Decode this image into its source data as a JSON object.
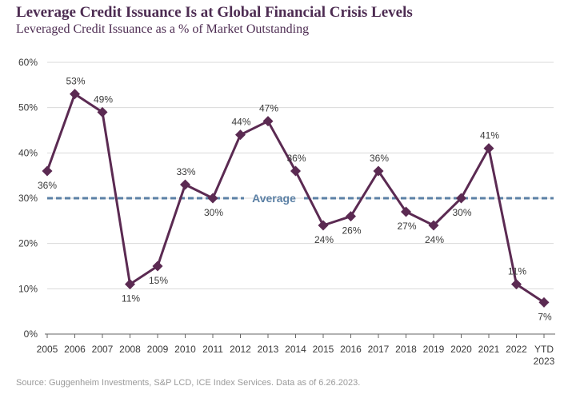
{
  "title": "Leverage Credit Issuance Is at Global Financial Crisis Levels",
  "subtitle": "Leveraged Credit Issuance as a % of Market Outstanding",
  "source": "Source: Guggenheim Investments, S&P LCD, ICE Index Services. Data as of 6.26.2023.",
  "colors": {
    "line": "#5b2a52",
    "average": "#5b80a5",
    "grid": "#d9d9d9",
    "title": "#4d2c52"
  },
  "chart_data": {
    "type": "line",
    "title": "Leverage Credit Issuance Is at Global Financial Crisis Levels",
    "subtitle": "Leveraged Credit Issuance as a % of Market Outstanding",
    "categories": [
      "2005",
      "2006",
      "2007",
      "2008",
      "2009",
      "2010",
      "2011",
      "2012",
      "2013",
      "2014",
      "2015",
      "2016",
      "2017",
      "2018",
      "2019",
      "2020",
      "2021",
      "2022",
      "YTD 2023"
    ],
    "values": [
      36,
      53,
      49,
      11,
      15,
      33,
      30,
      44,
      47,
      36,
      24,
      26,
      36,
      27,
      24,
      30,
      41,
      11,
      7
    ],
    "data_labels": [
      "36%",
      "53%",
      "49%",
      "11%",
      "15%",
      "33%",
      "30%",
      "44%",
      "47%",
      "36%",
      "24%",
      "26%",
      "36%",
      "27%",
      "24%",
      "30%",
      "41%",
      "11%",
      "7%"
    ],
    "label_positions": [
      "below",
      "above",
      "above",
      "below",
      "below",
      "above",
      "below",
      "above",
      "above",
      "above",
      "below",
      "below",
      "above",
      "below",
      "below",
      "below",
      "above",
      "above",
      "below"
    ],
    "average": {
      "label": "Average",
      "value": 30
    },
    "ylim": [
      0,
      60
    ],
    "yticks": [
      0,
      10,
      20,
      30,
      40,
      50,
      60
    ],
    "ytick_labels": [
      "0%",
      "10%",
      "20%",
      "30%",
      "40%",
      "50%",
      "60%"
    ],
    "xlabel": "",
    "ylabel": "",
    "grid": "horizontal",
    "marker": "diamond"
  }
}
